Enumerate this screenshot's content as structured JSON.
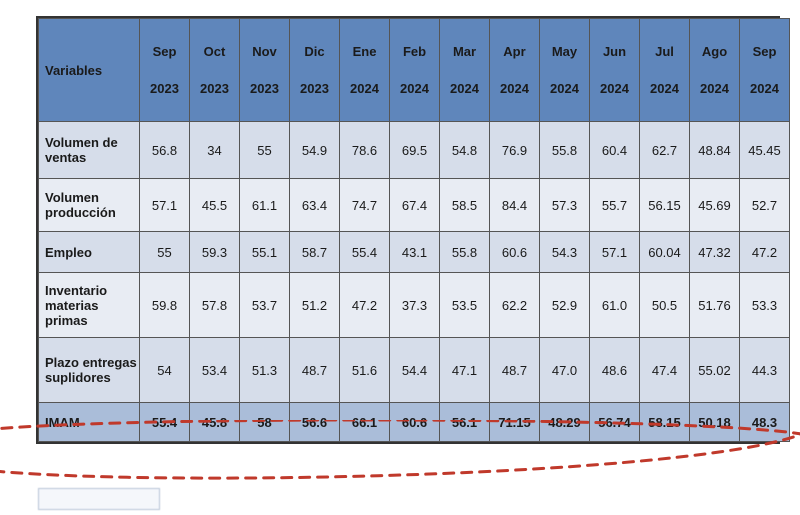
{
  "table": {
    "variables_header": "Variables",
    "columns": [
      {
        "month": "Sep",
        "year": "2023"
      },
      {
        "month": "Oct",
        "year": "2023"
      },
      {
        "month": "Nov",
        "year": "2023"
      },
      {
        "month": "Dic",
        "year": "2023"
      },
      {
        "month": "Ene",
        "year": "2024"
      },
      {
        "month": "Feb",
        "year": "2024"
      },
      {
        "month": "Mar",
        "year": "2024"
      },
      {
        "month": "Apr",
        "year": "2024"
      },
      {
        "month": "May",
        "year": "2024"
      },
      {
        "month": "Jun",
        "year": "2024"
      },
      {
        "month": "Jul",
        "year": "2024"
      },
      {
        "month": "Ago",
        "year": "2024"
      },
      {
        "month": "Sep",
        "year": "2024"
      }
    ],
    "rows": [
      {
        "label": "Volumen de ventas",
        "values": [
          "56.8",
          "34",
          "55",
          "54.9",
          "78.6",
          "69.5",
          "54.8",
          "76.9",
          "55.8",
          "60.4",
          "62.7",
          "48.84",
          "45.45"
        ]
      },
      {
        "label": "Volumen producción",
        "values": [
          "57.1",
          "45.5",
          "61.1",
          "63.4",
          "74.7",
          "67.4",
          "58.5",
          "84.4",
          "57.3",
          "55.7",
          "56.15",
          "45.69",
          "52.7"
        ]
      },
      {
        "label": "Empleo",
        "values": [
          "55",
          "59.3",
          "55.1",
          "58.7",
          "55.4",
          "43.1",
          "55.8",
          "60.6",
          "54.3",
          "57.1",
          "60.04",
          "47.32",
          "47.2"
        ]
      },
      {
        "label": "Inventario materias primas",
        "values": [
          "59.8",
          "57.8",
          "53.7",
          "51.2",
          "47.2",
          "37.3",
          "53.5",
          "62.2",
          "52.9",
          "61.0",
          "50.5",
          "51.76",
          "53.3"
        ]
      },
      {
        "label": "Plazo entregas suplidores",
        "values": [
          "54",
          "53.4",
          "51.3",
          "48.7",
          "51.6",
          "54.4",
          "47.1",
          "48.7",
          "47.0",
          "48.6",
          "47.4",
          "55.02",
          "44.3"
        ]
      },
      {
        "label": "IMAM",
        "values": [
          "55.4",
          "45.8",
          "58",
          "56.6",
          "66.1",
          "60.6",
          "56.1",
          "71.15",
          "48.29",
          "56.74",
          "58.15",
          "50.18",
          "48.3"
        ]
      }
    ],
    "header_bg": "#5f86bb",
    "row_light_bg": "#d6ddea",
    "row_alt_bg": "#e8ecf3",
    "row_highlight_bg": "#aabdd9",
    "border_color": "#555555",
    "text_color": "#1a1a1a",
    "highlight_stroke": "#c0392b",
    "highlight_dash": "10,8",
    "highlight_width": 3
  }
}
